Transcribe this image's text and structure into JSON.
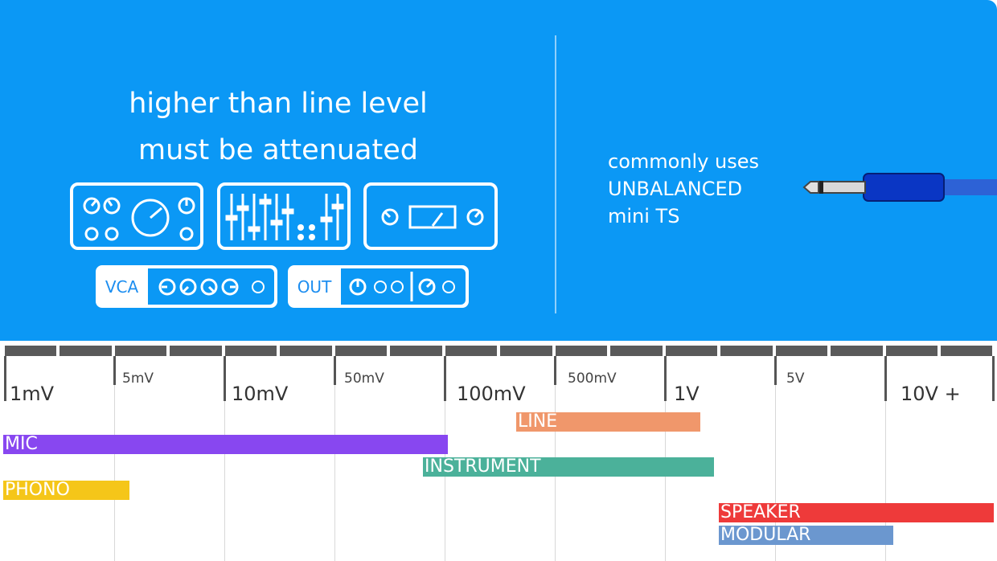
{
  "left_panel": {
    "line1": "higher than line level",
    "line2": "must be attenuated",
    "vca_label": "VCA",
    "out_label": "OUT"
  },
  "right_panel": {
    "line1": "commonly uses",
    "line2": "UNBALANCED",
    "line3": "mini TS"
  },
  "scale": {
    "labels": [
      "1mV",
      "5mV",
      "10mV",
      "50mV",
      "100mV",
      "500mV",
      "1V",
      "5V",
      "10V +"
    ]
  },
  "bars": {
    "line": "LINE",
    "mic": "MIC",
    "instrument": "INSTRUMENT",
    "phono": "PHONO",
    "speaker": "SPEAKER",
    "modular": "MODULAR"
  },
  "colors": {
    "panel": "#0b98f5",
    "line": "#f0976b",
    "mic": "#8847f0",
    "instrument": "#4bb19a",
    "phono": "#f5c619",
    "speaker": "#ee3a3a",
    "modular": "#6b97cf",
    "cable": "#0a36c4"
  },
  "chart_data": {
    "type": "range",
    "axis": "voltage (log scale)",
    "ticks": [
      "1mV",
      "5mV",
      "10mV",
      "50mV",
      "100mV",
      "500mV",
      "1V",
      "5V",
      "10V +"
    ],
    "series": [
      {
        "name": "LINE",
        "from": "~250mV",
        "to": "~2V"
      },
      {
        "name": "MIC",
        "from": "1mV",
        "to": "~100mV"
      },
      {
        "name": "INSTRUMENT",
        "from": "~80mV",
        "to": "~2.2V"
      },
      {
        "name": "PHONO",
        "from": "1mV",
        "to": "~4mV"
      },
      {
        "name": "SPEAKER",
        "from": "~3V",
        "to": "10V +"
      },
      {
        "name": "MODULAR",
        "from": "~3V",
        "to": "~10V"
      }
    ]
  }
}
